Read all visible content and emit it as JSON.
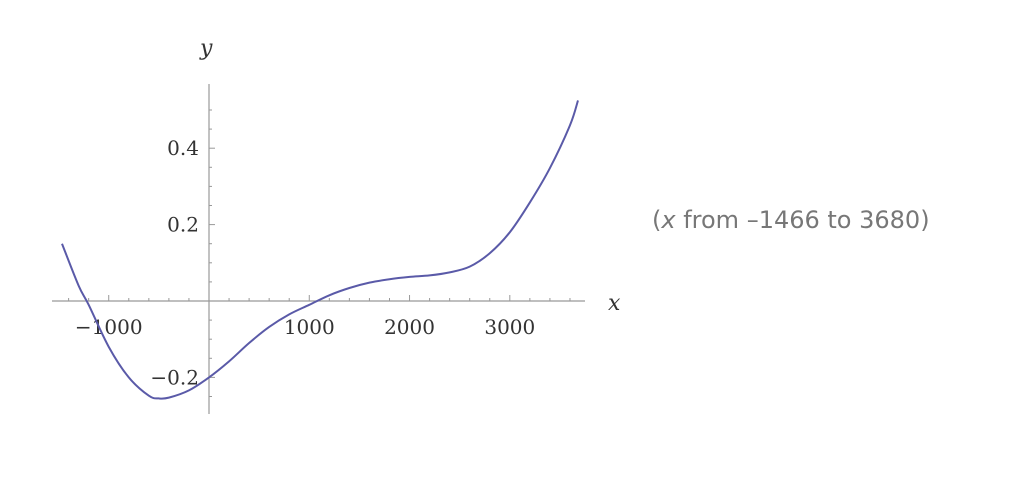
{
  "chart_data": {
    "type": "line",
    "xlabel": "x",
    "ylabel": "y",
    "xlim": [
      -1466,
      3680
    ],
    "ylim": [
      -0.29,
      0.53
    ],
    "x_ticks": [
      -1000,
      1000,
      2000,
      3000
    ],
    "x_tick_labels": [
      "−1000",
      "1000",
      "2000",
      "3000"
    ],
    "y_ticks": [
      -0.2,
      0.2,
      0.4
    ],
    "y_tick_labels": [
      "−0.2",
      "0.2",
      "0.4"
    ],
    "grid": false,
    "line_color": "#5a5aa8",
    "series": [
      {
        "x": [
          -1466,
          -1300,
          -1200,
          -1000,
          -800,
          -600,
          -500,
          -400,
          -200,
          0,
          200,
          400,
          600,
          800,
          1000,
          1200,
          1400,
          1600,
          1800,
          2000,
          2200,
          2400,
          2600,
          2800,
          3000,
          3200,
          3400,
          3600,
          3680
        ],
        "y": [
          0.15,
          0.04,
          -0.01,
          -0.12,
          -0.2,
          -0.248,
          -0.255,
          -0.253,
          -0.234,
          -0.2,
          -0.158,
          -0.11,
          -0.068,
          -0.035,
          -0.01,
          0.015,
          0.034,
          0.048,
          0.057,
          0.063,
          0.067,
          0.075,
          0.09,
          0.125,
          0.18,
          0.258,
          0.348,
          0.46,
          0.525
        ]
      }
    ]
  },
  "range_note": {
    "open_paren": "(",
    "var": "x",
    "text": " from –1466 to 3680)"
  }
}
